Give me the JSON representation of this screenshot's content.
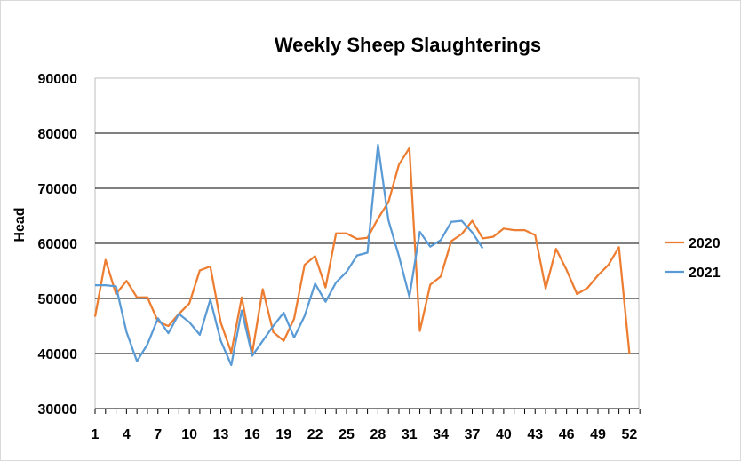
{
  "chart_data": {
    "type": "line",
    "title": "Weekly Sheep Slaughterings",
    "xlabel": "",
    "ylabel": "Head",
    "ylim": [
      30000,
      90000
    ],
    "y_ticks": [
      30000,
      40000,
      50000,
      60000,
      70000,
      80000,
      90000
    ],
    "x_tick_labels": [
      "1",
      "4",
      "7",
      "10",
      "13",
      "16",
      "19",
      "22",
      "25",
      "28",
      "31",
      "34",
      "37",
      "40",
      "43",
      "46",
      "49",
      "52"
    ],
    "grid": true,
    "legend_position": "right",
    "series": [
      {
        "name": "2020",
        "color": "#ED7D31",
        "x": [
          1,
          2,
          3,
          4,
          5,
          6,
          7,
          8,
          9,
          10,
          11,
          12,
          13,
          14,
          15,
          16,
          17,
          18,
          19,
          20,
          21,
          22,
          23,
          24,
          25,
          26,
          27,
          28,
          29,
          30,
          31,
          32,
          33,
          34,
          35,
          36,
          37,
          38,
          39,
          40,
          41,
          42,
          43,
          44,
          45,
          46,
          47,
          48,
          49,
          50,
          51,
          52
        ],
        "values": [
          46700,
          57000,
          50800,
          53200,
          50200,
          50200,
          45800,
          45000,
          47200,
          49100,
          55100,
          55800,
          45600,
          40200,
          50200,
          40100,
          51700,
          43900,
          42300,
          46300,
          56100,
          57700,
          52000,
          61800,
          61800,
          60800,
          61000,
          64500,
          67500,
          74300,
          77300,
          44100,
          52500,
          54000,
          60400,
          61700,
          64100,
          60900,
          61200,
          62700,
          62400,
          62400,
          61500,
          51800,
          59000,
          55200,
          50800,
          51900,
          54200,
          56100,
          59300,
          40000
        ]
      },
      {
        "name": "2021",
        "color": "#5B9BD5",
        "x": [
          1,
          2,
          3,
          4,
          5,
          6,
          7,
          8,
          9,
          10,
          11,
          12,
          13,
          14,
          15,
          16,
          17,
          18,
          19,
          20,
          21,
          22,
          23,
          24,
          25,
          26,
          27,
          28,
          29,
          30,
          31,
          32,
          33,
          34,
          35,
          36,
          37,
          38
        ],
        "values": [
          52400,
          52400,
          52200,
          43900,
          38600,
          41700,
          46400,
          43700,
          47200,
          45700,
          43400,
          49800,
          42300,
          37900,
          47800,
          39600,
          42300,
          45000,
          47400,
          42900,
          46800,
          52700,
          49400,
          52900,
          54800,
          57800,
          58300,
          77900,
          64200,
          57700,
          50300,
          62100,
          59400,
          60600,
          63900,
          64100,
          62000,
          59100
        ]
      }
    ]
  }
}
